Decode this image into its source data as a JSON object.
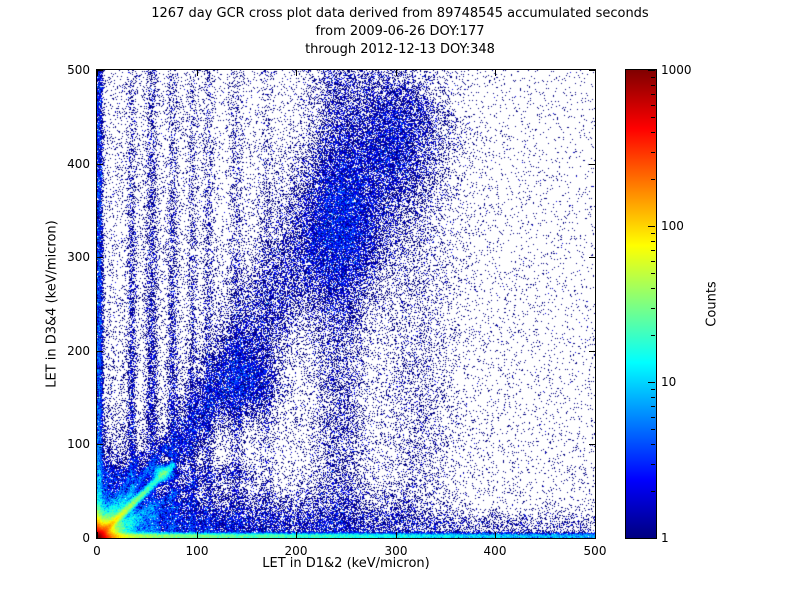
{
  "figure": {
    "title_line1": "1267 day GCR cross plot data derived from 89748545 accumulated seconds",
    "title_line2": "from 2009-06-26 DOY:177",
    "title_line3": "through 2012-12-13 DOY:348",
    "background": "#ffffff"
  },
  "axes": {
    "xlabel": "LET in D1&2 (keV/micron)",
    "ylabel": "LET in D3&4 (keV/micron)",
    "x_ticks": [
      0,
      100,
      200,
      300,
      400,
      500
    ],
    "y_ticks": [
      0,
      100,
      200,
      300,
      400,
      500
    ],
    "x_range": [
      0,
      500
    ],
    "y_range": [
      0,
      500
    ]
  },
  "colorbar": {
    "label": "Counts",
    "scale": "log",
    "min": 1,
    "max": 1000,
    "tick_values": [
      1000,
      100,
      10,
      1
    ],
    "colormap": "jet",
    "colors": {
      "low": "#000080",
      "high": "#800000"
    }
  },
  "chart_data": {
    "type": "heatmap",
    "title": "1267 day GCR cross plot data derived from 89748545 accumulated seconds from 2009-06-26 DOY:177 through 2012-12-13 DOY:348",
    "xlabel": "LET in D1&2 (keV/micron)",
    "ylabel": "LET in D3&4 (keV/micron)",
    "x_range": [
      0,
      500
    ],
    "y_range": [
      0,
      500
    ],
    "count_range": [
      1,
      1000
    ],
    "count_scale": "log",
    "colormap": "jet",
    "representation": "procedural-density-features",
    "seed": 1337,
    "features": [
      {
        "kind": "blob",
        "x": 0,
        "y": 0,
        "sx": 7,
        "sy": 7,
        "dist": "exp",
        "points": 60000
      },
      {
        "kind": "blob",
        "x": 0,
        "y": 0,
        "sx": 26,
        "sy": 26,
        "dist": "exp",
        "points": 16000
      },
      {
        "kind": "ridge",
        "x1": 0,
        "y1": 0,
        "x2": 78,
        "y2": 80,
        "w": 2.2,
        "taper": 2.8,
        "points": 26000
      },
      {
        "kind": "blob",
        "x": 66,
        "y": 69,
        "sx": 5,
        "sy": 5,
        "dist": "norm",
        "points": 2600
      },
      {
        "kind": "ridge",
        "x1": 0,
        "y1": 0,
        "x2": 70,
        "y2": 100,
        "w": 2.8,
        "taper": 2.6,
        "points": 5200
      },
      {
        "kind": "ridge",
        "x1": 0,
        "y1": 0,
        "x2": 46,
        "y2": 92,
        "w": 2.8,
        "taper": 2.6,
        "points": 3200
      },
      {
        "kind": "ridge",
        "x1": 0,
        "y1": 0,
        "x2": 100,
        "y2": 60,
        "w": 2.8,
        "taper": 2.6,
        "points": 4200
      },
      {
        "kind": "ridge",
        "x1": 0,
        "y1": 0,
        "x2": 100,
        "y2": 42,
        "w": 3.0,
        "taper": 2.6,
        "points": 2600
      },
      {
        "kind": "band",
        "x1": 75,
        "y1": 85,
        "x2": 315,
        "y2": 480,
        "w1": 10,
        "w2": 42,
        "points": 20000
      },
      {
        "kind": "blob",
        "x": 248,
        "y": 330,
        "sx": 26,
        "sy": 48,
        "dist": "norm",
        "points": 11000
      },
      {
        "kind": "blob",
        "x": 296,
        "y": 420,
        "sx": 22,
        "sy": 40,
        "dist": "norm",
        "points": 5000
      },
      {
        "kind": "blob",
        "x": 150,
        "y": 165,
        "sx": 18,
        "sy": 22,
        "dist": "norm",
        "points": 4000
      },
      {
        "kind": "vband",
        "x": 35,
        "w": 2.5,
        "y0": 0,
        "y1": 500,
        "ytaper": 1.6,
        "points": 2600
      },
      {
        "kind": "vband",
        "x": 55,
        "w": 3.5,
        "y0": 0,
        "y1": 500,
        "ytaper": 1.4,
        "points": 3600
      },
      {
        "kind": "vband",
        "x": 76,
        "w": 3,
        "y0": 0,
        "y1": 500,
        "ytaper": 1.4,
        "points": 2600
      },
      {
        "kind": "vband",
        "x": 96,
        "w": 3,
        "y0": 0,
        "y1": 500,
        "ytaper": 1.2,
        "points": 1600
      },
      {
        "kind": "vband",
        "x": 112,
        "w": 3,
        "y0": 0,
        "y1": 500,
        "ytaper": 1.2,
        "points": 1700
      },
      {
        "kind": "vband",
        "x": 140,
        "w": 4,
        "y0": 0,
        "y1": 500,
        "ytaper": 1.0,
        "points": 1700
      },
      {
        "kind": "vband",
        "x": 170,
        "w": 4,
        "y0": 0,
        "y1": 500,
        "ytaper": 1.0,
        "points": 1100
      },
      {
        "kind": "vband",
        "x": 243,
        "w": 16,
        "y0": 0,
        "y1": 500,
        "ytaper": 0,
        "points": 9000
      },
      {
        "kind": "vband",
        "x": 322,
        "w": 22,
        "y0": 0,
        "y1": 500,
        "ytaper": 0,
        "points": 5200
      },
      {
        "kind": "hband",
        "y": 2,
        "w": 1.8,
        "x0": 0,
        "x1": 500,
        "xtaper": 1.8,
        "points": 45000
      },
      {
        "kind": "hband",
        "y": 13,
        "w": 9,
        "x0": 0,
        "x1": 500,
        "xtaper": 2.0,
        "points": 9000
      },
      {
        "kind": "hband",
        "y": 32,
        "w": 14,
        "x0": 0,
        "x1": 320,
        "xtaper": 1.5,
        "points": 6000
      },
      {
        "kind": "hband",
        "y": 68,
        "w": 6,
        "x0": 0,
        "x1": 160,
        "xtaper": 1.2,
        "points": 1800
      },
      {
        "kind": "vband",
        "x": 2,
        "w": 2.2,
        "y0": 0,
        "y1": 500,
        "ytaper": 0.9,
        "points": 10000
      },
      {
        "kind": "scatter",
        "xtaper": 1.1,
        "ytaper": 0.5,
        "points": 20000
      }
    ]
  }
}
